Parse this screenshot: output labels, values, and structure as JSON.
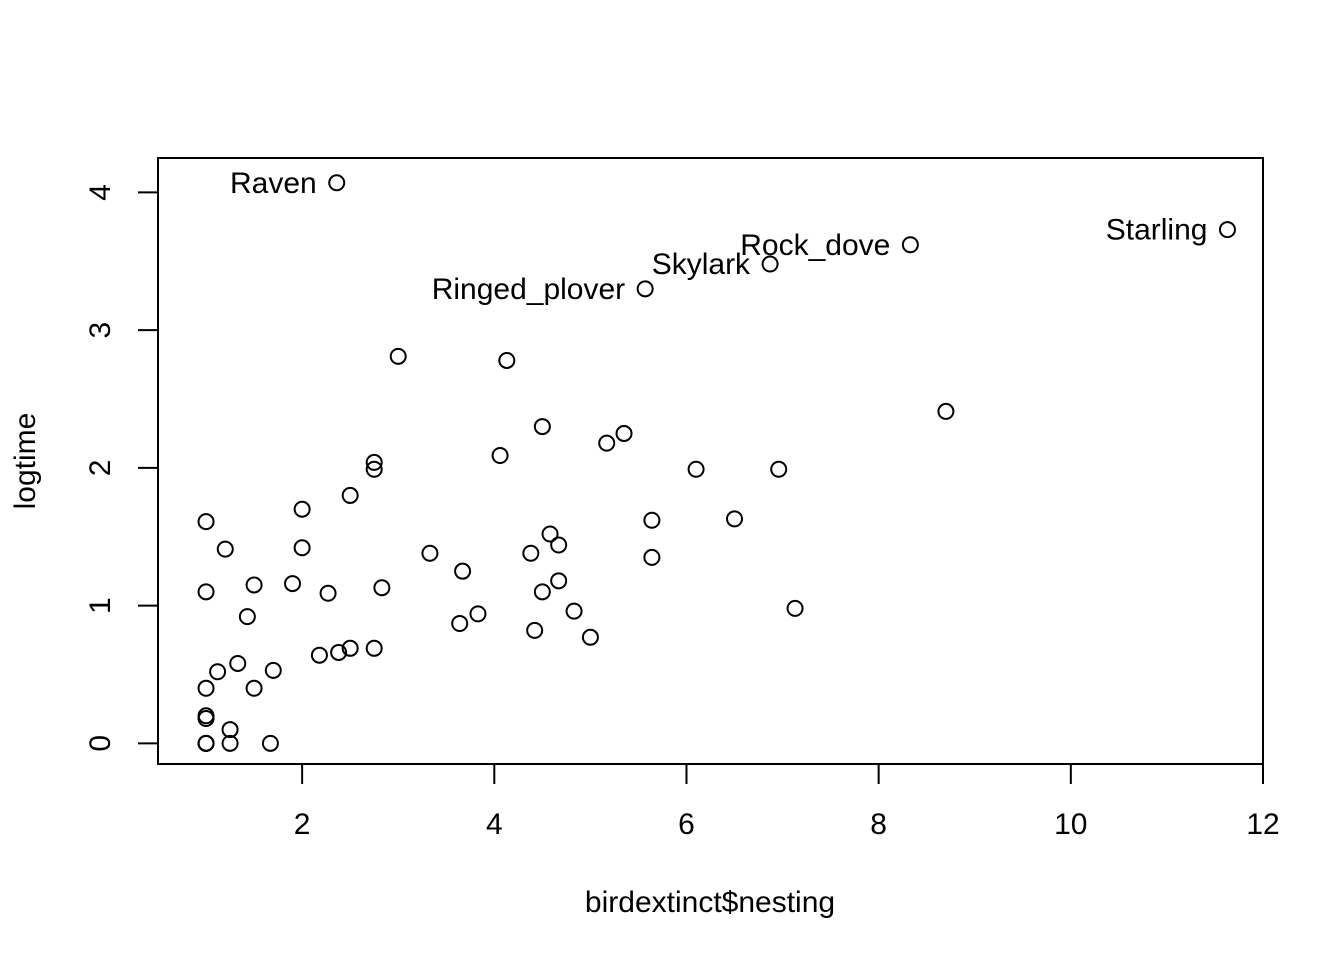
{
  "chart_data": {
    "type": "scatter",
    "title": "",
    "xlabel": "birdextinct$nesting",
    "ylabel": "logtime",
    "xlim": [
      0.5,
      12
    ],
    "ylim": [
      -0.15,
      4.25
    ],
    "xticks": [
      2,
      4,
      6,
      8,
      10,
      12
    ],
    "yticks": [
      0,
      1,
      2,
      3,
      4
    ],
    "grid": false,
    "marker": "open-circle",
    "points": [
      {
        "x": 1.0,
        "y": 0.0
      },
      {
        "x": 1.0,
        "y": 0.0
      },
      {
        "x": 1.0,
        "y": 0.0
      },
      {
        "x": 1.0,
        "y": 0.18
      },
      {
        "x": 1.0,
        "y": 0.2
      },
      {
        "x": 1.0,
        "y": 0.4
      },
      {
        "x": 1.0,
        "y": 1.1
      },
      {
        "x": 1.0,
        "y": 1.61
      },
      {
        "x": 1.12,
        "y": 0.52
      },
      {
        "x": 1.25,
        "y": 0.0
      },
      {
        "x": 1.25,
        "y": 0.1
      },
      {
        "x": 1.2,
        "y": 1.41
      },
      {
        "x": 1.33,
        "y": 0.58
      },
      {
        "x": 1.43,
        "y": 0.92
      },
      {
        "x": 1.5,
        "y": 0.4
      },
      {
        "x": 1.5,
        "y": 1.15
      },
      {
        "x": 1.67,
        "y": 0.0
      },
      {
        "x": 1.7,
        "y": 0.53
      },
      {
        "x": 1.9,
        "y": 1.16
      },
      {
        "x": 2.0,
        "y": 1.42
      },
      {
        "x": 2.0,
        "y": 1.7
      },
      {
        "x": 2.18,
        "y": 0.64
      },
      {
        "x": 2.27,
        "y": 1.09
      },
      {
        "x": 2.38,
        "y": 0.66
      },
      {
        "x": 2.5,
        "y": 0.69
      },
      {
        "x": 2.5,
        "y": 1.8
      },
      {
        "x": 2.75,
        "y": 0.69
      },
      {
        "x": 2.75,
        "y": 1.99
      },
      {
        "x": 2.75,
        "y": 2.04
      },
      {
        "x": 2.83,
        "y": 1.13
      },
      {
        "x": 3.0,
        "y": 2.81
      },
      {
        "x": 3.33,
        "y": 1.38
      },
      {
        "x": 3.64,
        "y": 0.87
      },
      {
        "x": 3.67,
        "y": 1.25
      },
      {
        "x": 3.83,
        "y": 0.94
      },
      {
        "x": 4.06,
        "y": 2.09
      },
      {
        "x": 4.13,
        "y": 2.78
      },
      {
        "x": 4.38,
        "y": 1.38
      },
      {
        "x": 4.42,
        "y": 0.82
      },
      {
        "x": 4.5,
        "y": 1.1
      },
      {
        "x": 4.5,
        "y": 2.3
      },
      {
        "x": 4.58,
        "y": 1.52
      },
      {
        "x": 4.67,
        "y": 1.18
      },
      {
        "x": 4.67,
        "y": 1.44
      },
      {
        "x": 4.83,
        "y": 0.96
      },
      {
        "x": 5.0,
        "y": 0.77
      },
      {
        "x": 5.17,
        "y": 2.18
      },
      {
        "x": 5.35,
        "y": 2.25
      },
      {
        "x": 5.57,
        "y": 3.3
      },
      {
        "x": 5.64,
        "y": 1.35
      },
      {
        "x": 5.64,
        "y": 1.62
      },
      {
        "x": 6.1,
        "y": 1.99
      },
      {
        "x": 6.5,
        "y": 1.63
      },
      {
        "x": 6.87,
        "y": 3.48
      },
      {
        "x": 6.96,
        "y": 1.99
      },
      {
        "x": 7.13,
        "y": 0.98
      },
      {
        "x": 8.33,
        "y": 3.62
      },
      {
        "x": 8.7,
        "y": 2.41
      },
      {
        "x": 11.63,
        "y": 3.73
      },
      {
        "x": 2.36,
        "y": 4.07
      }
    ],
    "annotations": [
      {
        "text": "Raven",
        "x": 2.36,
        "y": 4.07
      },
      {
        "text": "Ringed_plover",
        "x": 5.57,
        "y": 3.3
      },
      {
        "text": "Skylark",
        "x": 6.87,
        "y": 3.48
      },
      {
        "text": "Rock_dove",
        "x": 8.33,
        "y": 3.62
      },
      {
        "text": "Starling",
        "x": 11.63,
        "y": 3.73
      }
    ]
  }
}
